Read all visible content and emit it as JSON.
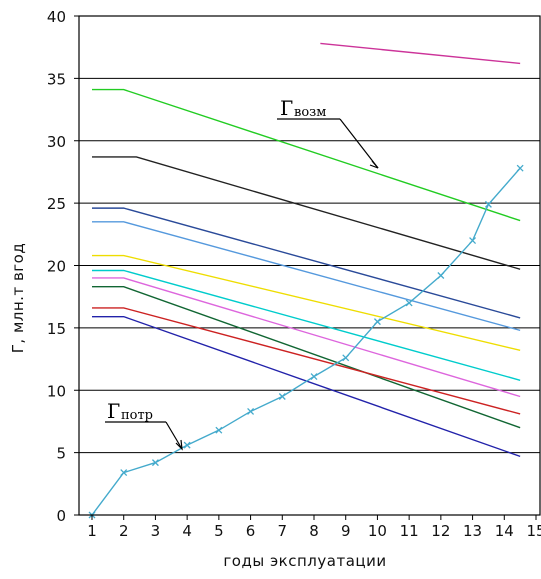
{
  "chart_data": {
    "type": "line",
    "xlabel": "годы эксплуатации",
    "ylabel": "Г, млн.т вгод",
    "xlim": [
      1,
      15
    ],
    "ylim": [
      0,
      40
    ],
    "x_ticks": [
      "1",
      "2",
      "3",
      "4",
      "5",
      "6",
      "7",
      "8",
      "9",
      "10",
      "11",
      "12",
      "13",
      "14",
      "15"
    ],
    "y_ticks": [
      "0",
      "5",
      "10",
      "15",
      "20",
      "25",
      "30",
      "35",
      "40"
    ],
    "grid_y": [
      5,
      10,
      15,
      20,
      25,
      30,
      35
    ],
    "annotations": [
      {
        "text": "Г",
        "subscript": "возм"
      },
      {
        "text": "Г",
        "subscript": "потр"
      }
    ],
    "series": [
      {
        "color": "#cc3399",
        "points": [
          [
            8.2,
            37.8
          ],
          [
            14.5,
            36.2
          ]
        ]
      },
      {
        "color": "#22cc22",
        "points": [
          [
            1,
            34.1
          ],
          [
            2,
            34.1
          ],
          [
            14.5,
            23.6
          ]
        ]
      },
      {
        "color": "#222222",
        "points": [
          [
            1,
            28.7
          ],
          [
            2.4,
            28.7
          ],
          [
            14.5,
            19.7
          ]
        ]
      },
      {
        "color": "#2a4a99",
        "points": [
          [
            1,
            24.6
          ],
          [
            2,
            24.6
          ],
          [
            14.5,
            15.8
          ]
        ]
      },
      {
        "color": "#5599dd",
        "points": [
          [
            1,
            23.5
          ],
          [
            2,
            23.5
          ],
          [
            14.5,
            14.8
          ]
        ]
      },
      {
        "color": "#eedd00",
        "points": [
          [
            1,
            20.8
          ],
          [
            2,
            20.8
          ],
          [
            14.5,
            13.2
          ]
        ]
      },
      {
        "color": "#00cccc",
        "points": [
          [
            1,
            19.6
          ],
          [
            2,
            19.6
          ],
          [
            14.5,
            10.8
          ]
        ]
      },
      {
        "color": "#dd66dd",
        "points": [
          [
            1,
            19
          ],
          [
            2,
            19
          ],
          [
            14.5,
            9.5
          ]
        ]
      },
      {
        "color": "#116633",
        "points": [
          [
            1,
            18.3
          ],
          [
            2,
            18.3
          ],
          [
            14.5,
            7
          ]
        ]
      },
      {
        "color": "#cc2222",
        "points": [
          [
            1,
            16.6
          ],
          [
            2,
            16.6
          ],
          [
            14.5,
            8.1
          ]
        ]
      },
      {
        "color": "#2222aa",
        "points": [
          [
            1,
            15.9
          ],
          [
            2,
            15.9
          ],
          [
            14.5,
            4.7
          ]
        ]
      },
      {
        "color": "#44aacc",
        "markers": true,
        "points": [
          [
            1,
            0
          ],
          [
            2,
            3.4
          ],
          [
            3,
            4.2
          ],
          [
            4,
            5.6
          ],
          [
            5,
            6.8
          ],
          [
            6,
            8.3
          ],
          [
            7,
            9.5
          ],
          [
            8,
            11.1
          ],
          [
            9,
            12.6
          ],
          [
            10,
            15.5
          ],
          [
            11,
            17
          ],
          [
            12,
            19.2
          ],
          [
            13,
            22
          ],
          [
            13.5,
            24.9
          ],
          [
            14.5,
            27.8
          ]
        ]
      }
    ]
  }
}
